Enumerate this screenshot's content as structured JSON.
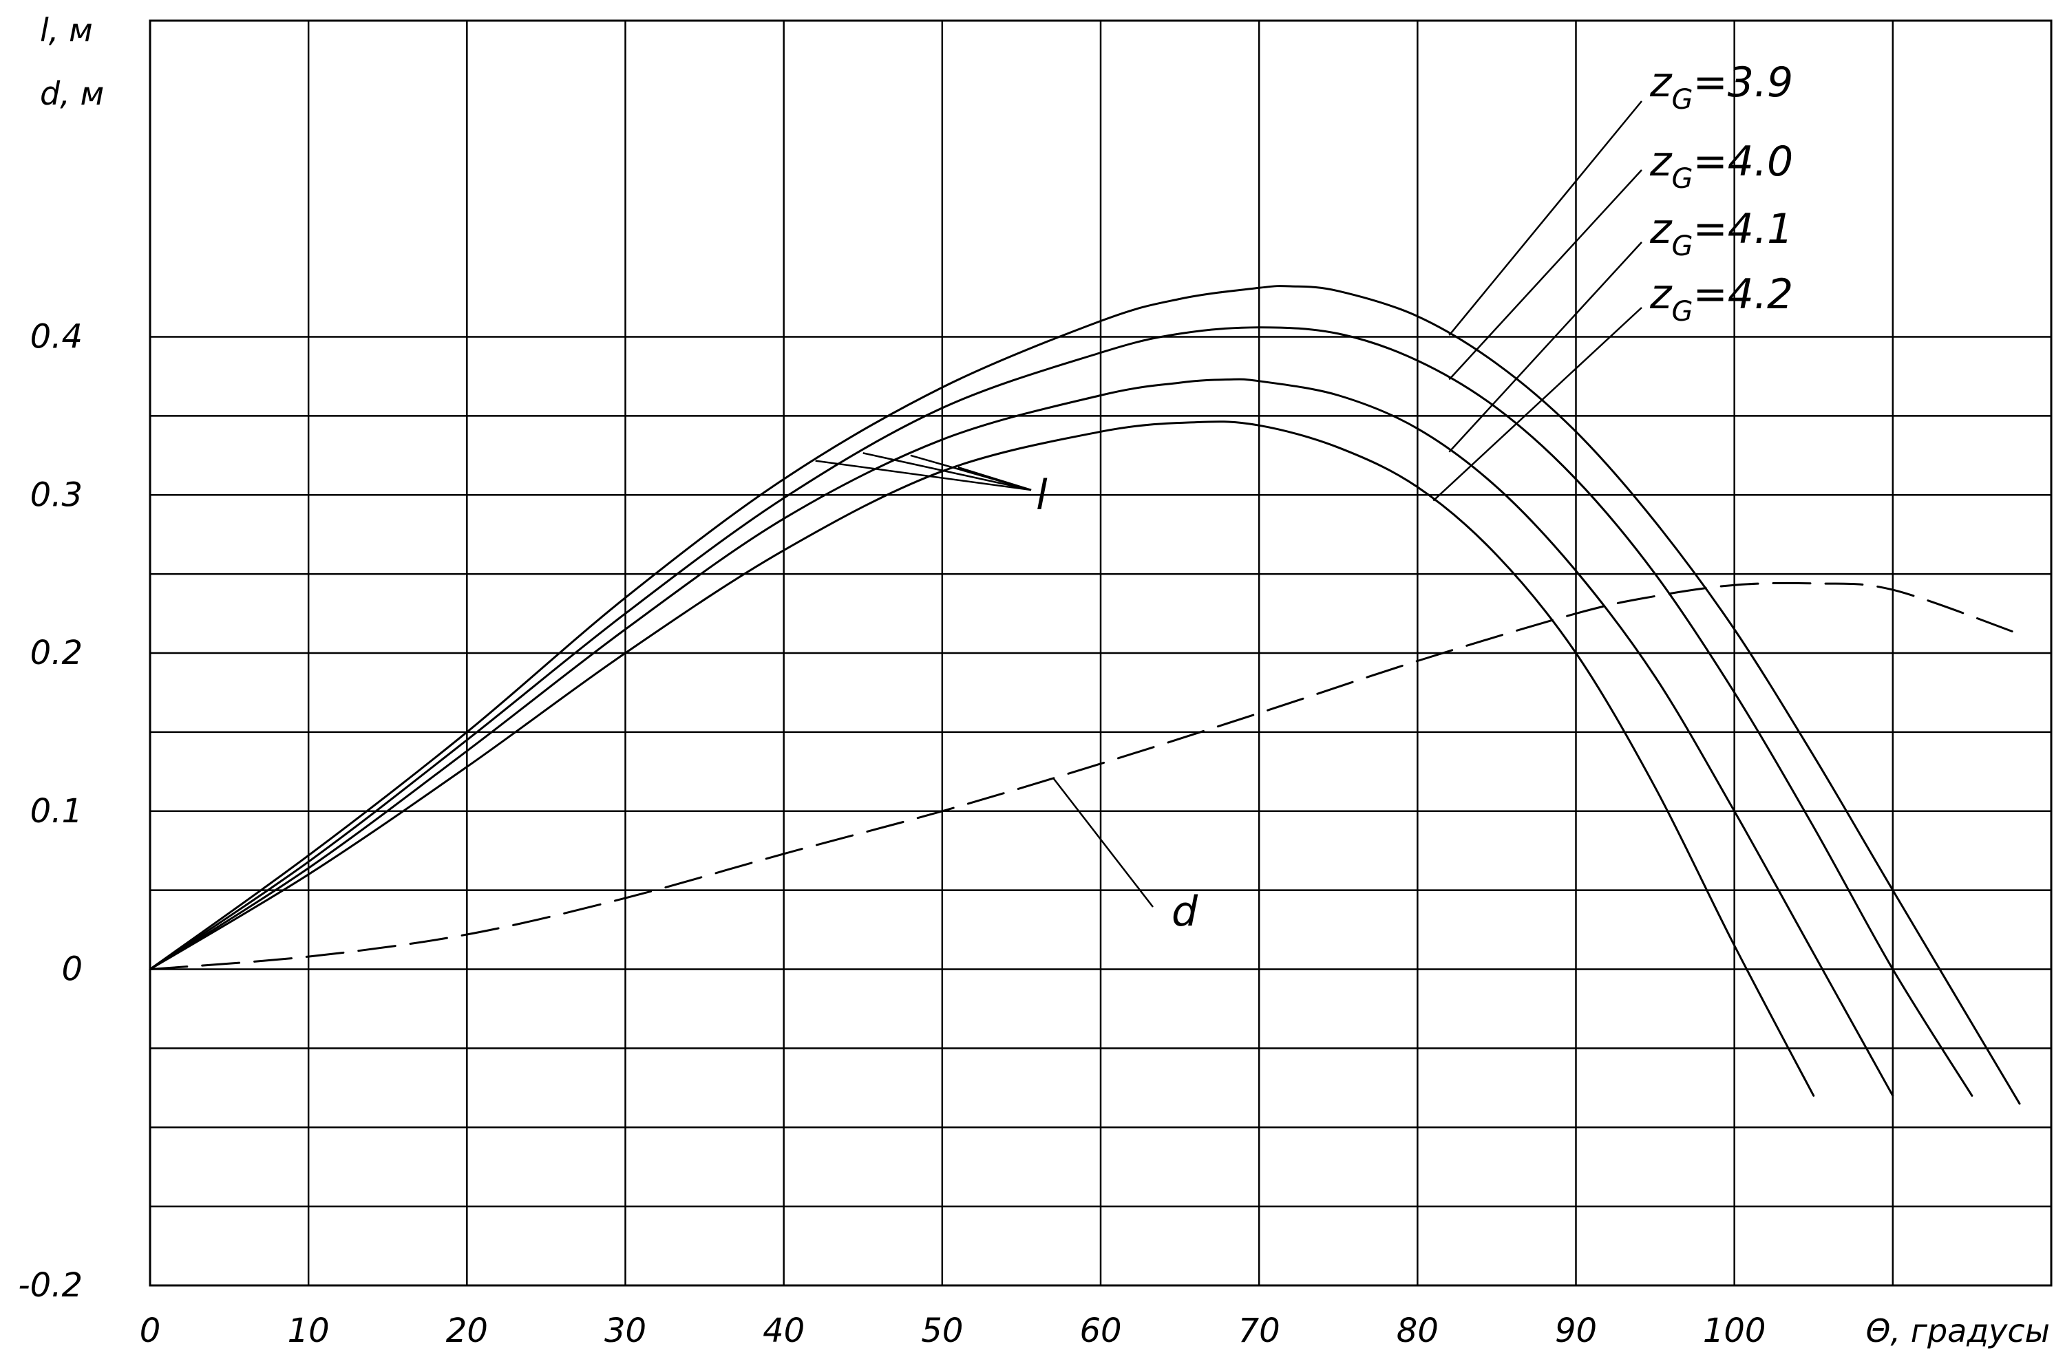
{
  "chart_data": {
    "type": "line",
    "title": "",
    "xlabel": "Θ, градусы",
    "ylabel_lines": [
      "l, м",
      "d, м"
    ],
    "xlim": [
      0,
      120
    ],
    "ylim": [
      -0.2,
      0.6
    ],
    "x_ticks": [
      "0",
      "10",
      "20",
      "30",
      "40",
      "50",
      "60",
      "70",
      "80",
      "90",
      "100"
    ],
    "y_ticks": [
      {
        "value": -0.2,
        "label": "-0.2"
      },
      {
        "value": 0,
        "label": "0"
      },
      {
        "value": 0.1,
        "label": "0.1"
      },
      {
        "value": 0.2,
        "label": "0.2"
      },
      {
        "value": 0.3,
        "label": "0.3"
      },
      {
        "value": 0.4,
        "label": "0.4"
      }
    ],
    "grid": true,
    "series": [
      {
        "id": "zg39",
        "label_main": "z",
        "label_sub": "G",
        "label_value": "=3.9",
        "line_style": "solid",
        "x": [
          0,
          10,
          20,
          30,
          40,
          50,
          60,
          65,
          70,
          72,
          75,
          80,
          85,
          90,
          95,
          100,
          105,
          110,
          118
        ],
        "y": [
          0,
          0.072,
          0.15,
          0.235,
          0.31,
          0.368,
          0.41,
          0.424,
          0.431,
          0.432,
          0.429,
          0.413,
          0.383,
          0.34,
          0.283,
          0.215,
          0.135,
          0.05,
          -0.085
        ]
      },
      {
        "id": "zg40",
        "label_main": "z",
        "label_sub": "G",
        "label_value": "=4.0",
        "line_style": "solid",
        "x": [
          0,
          10,
          20,
          30,
          40,
          50,
          60,
          65,
          70,
          75,
          80,
          85,
          90,
          95,
          100,
          105,
          110,
          115
        ],
        "y": [
          0,
          0.068,
          0.145,
          0.225,
          0.298,
          0.355,
          0.39,
          0.402,
          0.406,
          0.402,
          0.385,
          0.355,
          0.31,
          0.25,
          0.175,
          0.09,
          0,
          -0.08
        ]
      },
      {
        "id": "zg41",
        "label_main": "z",
        "label_sub": "G",
        "label_value": "=4.1",
        "line_style": "solid",
        "x": [
          0,
          10,
          20,
          30,
          40,
          50,
          60,
          65,
          68,
          70,
          75,
          80,
          85,
          90,
          95,
          100,
          105,
          110
        ],
        "y": [
          0,
          0.064,
          0.138,
          0.215,
          0.285,
          0.335,
          0.363,
          0.371,
          0.373,
          0.372,
          0.363,
          0.342,
          0.305,
          0.252,
          0.185,
          0.1,
          0.01,
          -0.08
        ]
      },
      {
        "id": "zg42",
        "label_main": "z",
        "label_sub": "G",
        "label_value": "=4.2",
        "line_style": "solid",
        "x": [
          0,
          10,
          20,
          30,
          40,
          50,
          60,
          66,
          70,
          75,
          80,
          85,
          90,
          95,
          100,
          105
        ],
        "y": [
          0,
          0.06,
          0.128,
          0.2,
          0.265,
          0.315,
          0.34,
          0.346,
          0.344,
          0.33,
          0.305,
          0.262,
          0.2,
          0.115,
          0.015,
          -0.08
        ]
      },
      {
        "id": "d",
        "label_main": "d",
        "label_sub": "",
        "label_value": "",
        "line_style": "dashed",
        "x": [
          0,
          10,
          20,
          30,
          40,
          50,
          60,
          70,
          80,
          90,
          95,
          100,
          105,
          110,
          118
        ],
        "y": [
          0,
          0.008,
          0.022,
          0.045,
          0.073,
          0.1,
          0.13,
          0.162,
          0.195,
          0.225,
          0.236,
          0.243,
          0.244,
          0.24,
          0.212
        ]
      }
    ],
    "annotations": [
      {
        "id": "l-label",
        "text": "l"
      },
      {
        "id": "d-label",
        "text": "d"
      }
    ]
  }
}
